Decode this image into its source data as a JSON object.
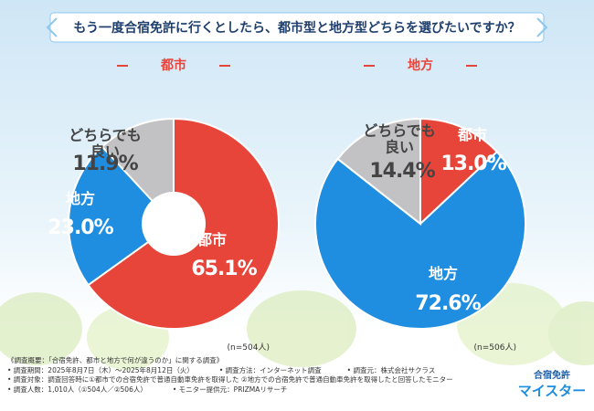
{
  "question": "もう一度合宿免許に行くとしたら、都市型と地方型どちらを選びたいですか？",
  "chart_data": [
    {
      "type": "pie",
      "hole": true,
      "title": "都市",
      "sample": "(n=504人)",
      "categories": [
        "都市",
        "地方",
        "どちらでも良い"
      ],
      "series": [
        {
          "values": [
            65.1,
            23.0,
            11.9
          ],
          "value_labels": [
            "65.1%",
            "23.0%",
            "11.9%"
          ],
          "colors": [
            "#e8453a",
            "#1f8de0",
            "#c2c2c4"
          ]
        }
      ]
    },
    {
      "type": "pie",
      "hole": false,
      "title": "地方",
      "sample": "(n=506人)",
      "categories": [
        "都市",
        "地方",
        "どちらでも良い"
      ],
      "series": [
        {
          "values": [
            13.0,
            72.6,
            14.4
          ],
          "value_labels": [
            "13.0%",
            "72.6%",
            "14.4%"
          ],
          "colors": [
            "#e8453a",
            "#1f8de0",
            "#c2c2c4"
          ]
        }
      ]
    }
  ],
  "notes": {
    "heading": "《調査概要：「合宿免許、都市と地方で何が違うのか」に関する調査》",
    "lines": [
      [
        "• 調査期間：2025年8月7日（木）～2025年8月12日（火）",
        "• 調査方法：インターネット調査",
        "• 調査元：株式会社サクラス"
      ],
      [
        "• 調査対象：調査回答時に①都市での合宿免許で普通自動車免許を取得した ②地方での合宿免許で普通自動車免許を取得したと回答したモニター"
      ],
      [
        "• 調査人数：1,010人（①504人／②506人）",
        "• モニター提供元：PRIZMAリサーチ"
      ]
    ]
  },
  "logo": {
    "top": "合宿免許",
    "bottom": "マイスター"
  }
}
